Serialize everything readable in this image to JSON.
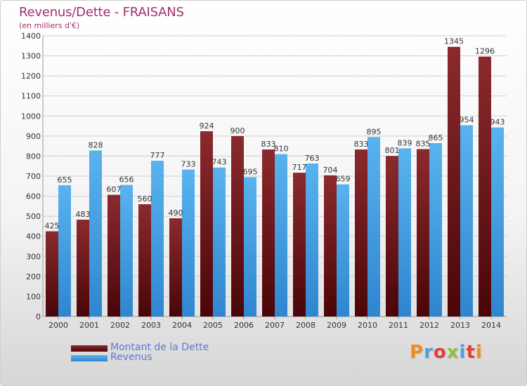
{
  "colors": {
    "title": "#a2306a",
    "debt_top": "#8b2a2e",
    "debt_bottom": "#4a0508",
    "revenue_top": "#59b3ee",
    "revenue_bottom": "#2f86d0",
    "legend_text": "#5c78d8",
    "logo": [
      "#f28a22",
      "#4fa0d8",
      "#e0403a",
      "#8fbf3a",
      "#4fa0d8",
      "#e0403a"
    ]
  },
  "logo_text": "Proxiti",
  "chart_data": {
    "type": "bar",
    "title": "Revenus/Dette - FRAISANS",
    "subtitle": "(en milliers d'€)",
    "categories": [
      "2000",
      "2001",
      "2002",
      "2003",
      "2004",
      "2005",
      "2006",
      "2007",
      "2008",
      "2009",
      "2010",
      "2011",
      "2012",
      "2013",
      "2014"
    ],
    "series": [
      {
        "name": "Montant de la Dette",
        "values": [
          425,
          483,
          607,
          560,
          490,
          924,
          900,
          833,
          717,
          704,
          833,
          801,
          835,
          1345,
          1296
        ],
        "labels": [
          "425",
          "483",
          "607",
          "560",
          "490",
          "924",
          "900",
          "833",
          "717",
          "704",
          "833",
          "801",
          "835",
          "1345",
          "1296"
        ]
      },
      {
        "name": "Revenus",
        "values": [
          655,
          828,
          656,
          777,
          733,
          743,
          695,
          810,
          763,
          659,
          895,
          839,
          865,
          954,
          943
        ],
        "labels": [
          "655",
          "828",
          "656",
          "777",
          "733",
          "743",
          "695",
          "810",
          "763",
          "659",
          "895",
          "839",
          "865",
          "954",
          "943"
        ]
      }
    ],
    "ylim": [
      0,
      1400
    ],
    "yticks": [
      0,
      100,
      200,
      300,
      400,
      500,
      600,
      700,
      800,
      900,
      1000,
      1100,
      1200,
      1300,
      1400
    ],
    "grid": true,
    "legend_position": "bottom-left"
  }
}
